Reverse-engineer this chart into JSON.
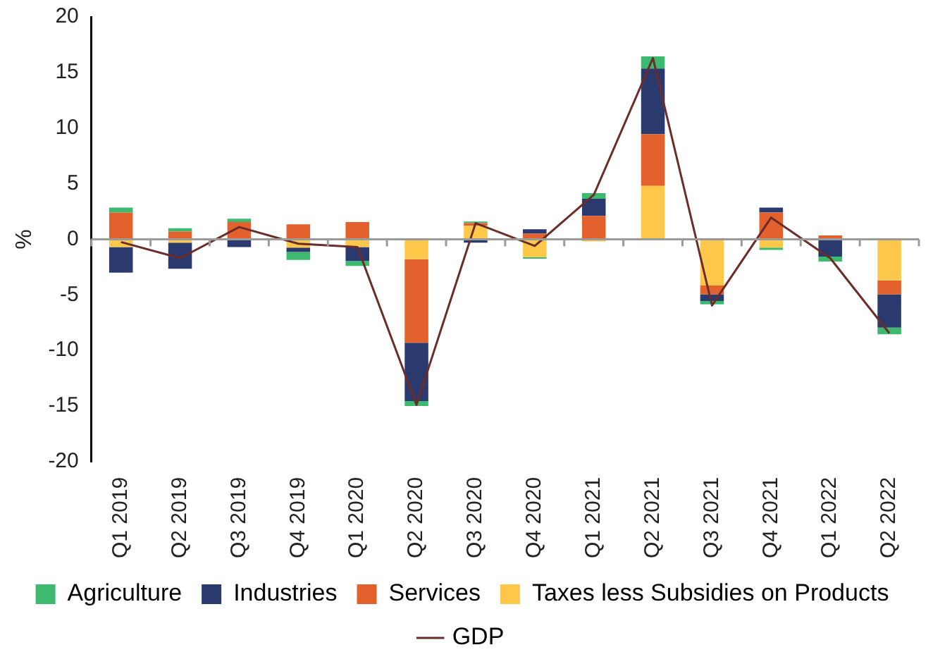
{
  "chart_data": {
    "type": "bar",
    "stacked": true,
    "ylabel": "%",
    "categories": [
      "Q1 2019",
      "Q2 2019",
      "Q3 2019",
      "Q4 2019",
      "Q1 2020",
      "Q2 2020",
      "Q3 2020",
      "Q4 2020",
      "Q1 2021",
      "Q2 2021",
      "Q3 2021",
      "Q4 2021",
      "Q1 2022",
      "Q2 2022"
    ],
    "series": [
      {
        "name": "Taxes less Subsidies on Products",
        "color": "#ffc84a",
        "values": [
          -0.7,
          -0.3,
          0,
          -0.75,
          -0.7,
          -1.8,
          1.2,
          -1.6,
          -0.2,
          4.8,
          -4.15,
          -0.75,
          0,
          -3.7
        ]
      },
      {
        "name": "Services",
        "color": "#e2612d",
        "values": [
          2.4,
          0.7,
          1.55,
          1.35,
          1.55,
          -7.5,
          0.25,
          0.5,
          2.1,
          4.65,
          -0.8,
          2.4,
          0.35,
          -1.25
        ]
      },
      {
        "name": "Industries",
        "color": "#2b3a6e",
        "values": [
          -2.3,
          -2.35,
          -0.7,
          -0.4,
          -1.25,
          -5.25,
          -0.3,
          0.4,
          1.55,
          5.9,
          -0.6,
          0.45,
          -1.55,
          -3.0
        ]
      },
      {
        "name": "Agriculture",
        "color": "#3dba6f",
        "values": [
          0.45,
          0.3,
          0.3,
          -0.7,
          -0.45,
          -0.45,
          0.15,
          -0.15,
          0.5,
          1.1,
          -0.3,
          -0.2,
          -0.45,
          -0.6
        ]
      },
      {
        "name": "GDP",
        "type": "line",
        "color": "#6b2d2a",
        "values": [
          -0.25,
          -1.7,
          1.1,
          -0.4,
          -0.7,
          -14.9,
          1.45,
          -0.6,
          4.0,
          16.3,
          -5.95,
          1.95,
          -1.7,
          -8.45
        ]
      }
    ],
    "ylim": [
      -20,
      20
    ],
    "yticks": [
      -20,
      -15,
      -10,
      -5,
      0,
      5,
      10,
      15,
      20
    ],
    "legend": "bottom",
    "marker": "none"
  }
}
